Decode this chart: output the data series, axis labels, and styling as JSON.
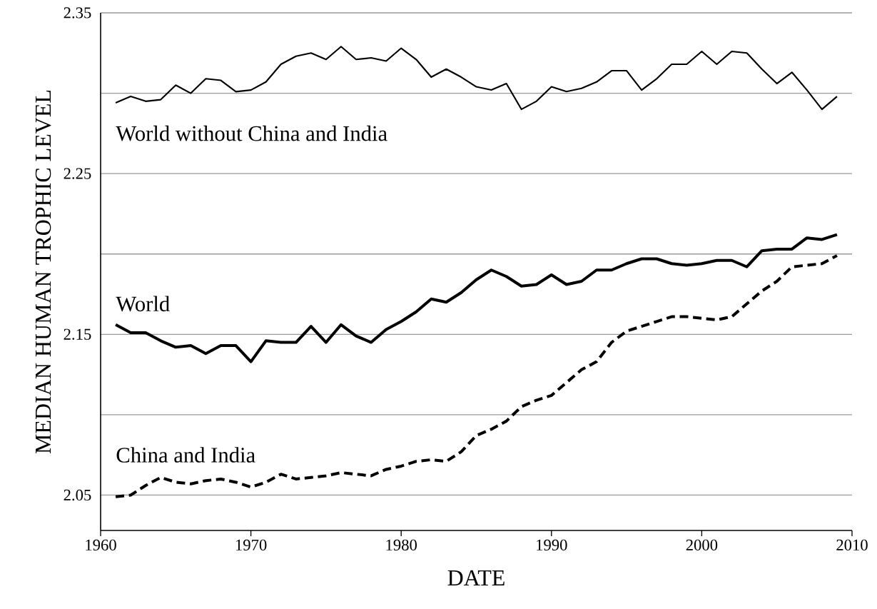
{
  "chart_data": {
    "type": "line",
    "xlabel": "DATE",
    "ylabel": "MEDIAN HUMAN TROPHIC LEVEL",
    "x": [
      1961,
      1962,
      1963,
      1964,
      1965,
      1966,
      1967,
      1968,
      1969,
      1970,
      1971,
      1972,
      1973,
      1974,
      1975,
      1976,
      1977,
      1978,
      1979,
      1980,
      1981,
      1982,
      1983,
      1984,
      1985,
      1986,
      1987,
      1988,
      1989,
      1990,
      1991,
      1992,
      1993,
      1994,
      1995,
      1996,
      1997,
      1998,
      1999,
      2000,
      2001,
      2002,
      2003,
      2004,
      2005,
      2006,
      2007,
      2008,
      2009
    ],
    "series": [
      {
        "name": "World without China and India",
        "color": "#000000",
        "line_style": "solid",
        "values": [
          2.294,
          2.298,
          2.295,
          2.296,
          2.305,
          2.3,
          2.309,
          2.308,
          2.301,
          2.302,
          2.307,
          2.318,
          2.323,
          2.325,
          2.321,
          2.329,
          2.321,
          2.322,
          2.32,
          2.328,
          2.321,
          2.31,
          2.315,
          2.31,
          2.304,
          2.302,
          2.306,
          2.29,
          2.295,
          2.304,
          2.301,
          2.303,
          2.307,
          2.314,
          2.314,
          2.302,
          2.309,
          2.318,
          2.318,
          2.326,
          2.318,
          2.326,
          2.325,
          2.315,
          2.306,
          2.313,
          2.302,
          2.29,
          2.298
        ]
      },
      {
        "name": "World",
        "color": "#000000",
        "line_style": "solid",
        "values": [
          2.156,
          2.151,
          2.151,
          2.146,
          2.142,
          2.143,
          2.138,
          2.143,
          2.143,
          2.133,
          2.146,
          2.145,
          2.145,
          2.155,
          2.145,
          2.156,
          2.149,
          2.145,
          2.153,
          2.158,
          2.164,
          2.172,
          2.17,
          2.176,
          2.184,
          2.19,
          2.186,
          2.18,
          2.181,
          2.187,
          2.181,
          2.183,
          2.19,
          2.19,
          2.194,
          2.197,
          2.197,
          2.194,
          2.193,
          2.194,
          2.196,
          2.196,
          2.192,
          2.202,
          2.203,
          2.203,
          2.21,
          2.209,
          2.212
        ]
      },
      {
        "name": "China and India",
        "color": "#000000",
        "line_style": "dashed",
        "values": [
          2.049,
          2.05,
          2.056,
          2.061,
          2.058,
          2.057,
          2.059,
          2.06,
          2.058,
          2.055,
          2.058,
          2.063,
          2.06,
          2.061,
          2.062,
          2.064,
          2.063,
          2.062,
          2.066,
          2.068,
          2.071,
          2.072,
          2.071,
          2.077,
          2.087,
          2.091,
          2.096,
          2.105,
          2.109,
          2.112,
          2.12,
          2.128,
          2.133,
          2.145,
          2.152,
          2.155,
          2.158,
          2.161,
          2.161,
          2.16,
          2.159,
          2.161,
          2.169,
          2.177,
          2.183,
          2.192,
          2.193,
          2.194,
          2.199
        ]
      }
    ],
    "xlim": [
      1960,
      2010
    ],
    "xticks": [
      1960,
      1970,
      1980,
      1990,
      2000,
      2010
    ],
    "ylim": [
      2.028,
      2.35
    ],
    "yticks": [
      2.05,
      {
        "value": 2.1,
        "label": null
      },
      2.15,
      {
        "value": 2.2,
        "label": null
      },
      2.25,
      {
        "value": 2.3,
        "label": null
      },
      2.35
    ],
    "grid": "y",
    "marker": "none"
  }
}
